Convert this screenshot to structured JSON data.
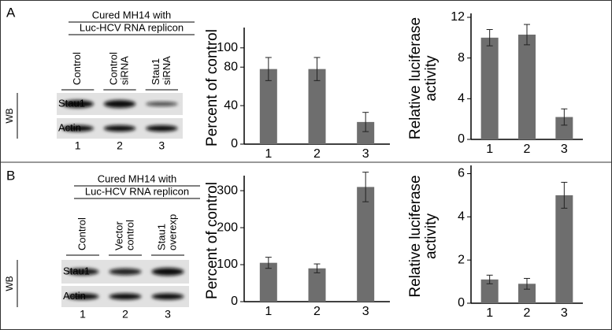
{
  "panels": [
    {
      "label": "A",
      "blot": {
        "title_lines": [
          "Cured MH14 with",
          "Luc-HCV RNA replicon"
        ],
        "lanes": [
          [
            "Control"
          ],
          [
            "Control",
            "siRNA"
          ],
          [
            "Stau1",
            "siRNA"
          ]
        ],
        "rows": [
          "Stau1",
          "Actin"
        ],
        "method": "WB",
        "lane_numbers": [
          "1",
          "2",
          "3"
        ]
      }
    },
    {
      "label": "B",
      "blot": {
        "title_lines": [
          "Cured MH14 with",
          "Luc-HCV RNA replicon"
        ],
        "lanes": [
          [
            "Control"
          ],
          [
            "Vector",
            "control"
          ],
          [
            "Stau1",
            "overexp"
          ]
        ],
        "rows": [
          "Stau1",
          "Actin"
        ],
        "method": "WB",
        "lane_numbers": [
          "1",
          "2",
          "3"
        ]
      }
    }
  ],
  "chart_data": [
    {
      "type": "bar",
      "y_label_lines": [
        "Percent of control"
      ],
      "categories": [
        "1",
        "2",
        "3"
      ],
      "values": [
        78,
        78,
        23
      ],
      "errors": [
        12,
        12,
        10
      ],
      "color": "#6e6e6e",
      "ylim": [
        0,
        117
      ],
      "yticks": [
        0,
        40,
        80,
        100
      ]
    },
    {
      "type": "bar",
      "y_label_lines": [
        "Relative luciferase",
        "activity"
      ],
      "categories": [
        "1",
        "2",
        "3"
      ],
      "values": [
        10,
        10.3,
        2.2
      ],
      "errors": [
        0.8,
        1,
        0.8
      ],
      "color": "#6e6e6e",
      "ylim": [
        0,
        12
      ],
      "yticks": [
        0,
        4,
        8,
        12
      ]
    },
    {
      "type": "bar",
      "y_label_lines": [
        "Percent of control"
      ],
      "categories": [
        "1",
        "2",
        "3"
      ],
      "values": [
        105,
        90,
        310
      ],
      "errors": [
        15,
        12,
        40
      ],
      "color": "#6e6e6e",
      "ylim": [
        0,
        330
      ],
      "yticks": [
        0,
        100,
        200,
        300
      ]
    },
    {
      "type": "bar",
      "y_label_lines": [
        "Relative luciferase",
        "activity"
      ],
      "categories": [
        "1",
        "2",
        "3"
      ],
      "values": [
        1.1,
        0.9,
        5
      ],
      "errors": [
        0.2,
        0.25,
        0.6
      ],
      "color": "#6e6e6e",
      "ylim": [
        0,
        6.2
      ],
      "yticks": [
        0,
        2,
        4,
        6
      ]
    }
  ]
}
